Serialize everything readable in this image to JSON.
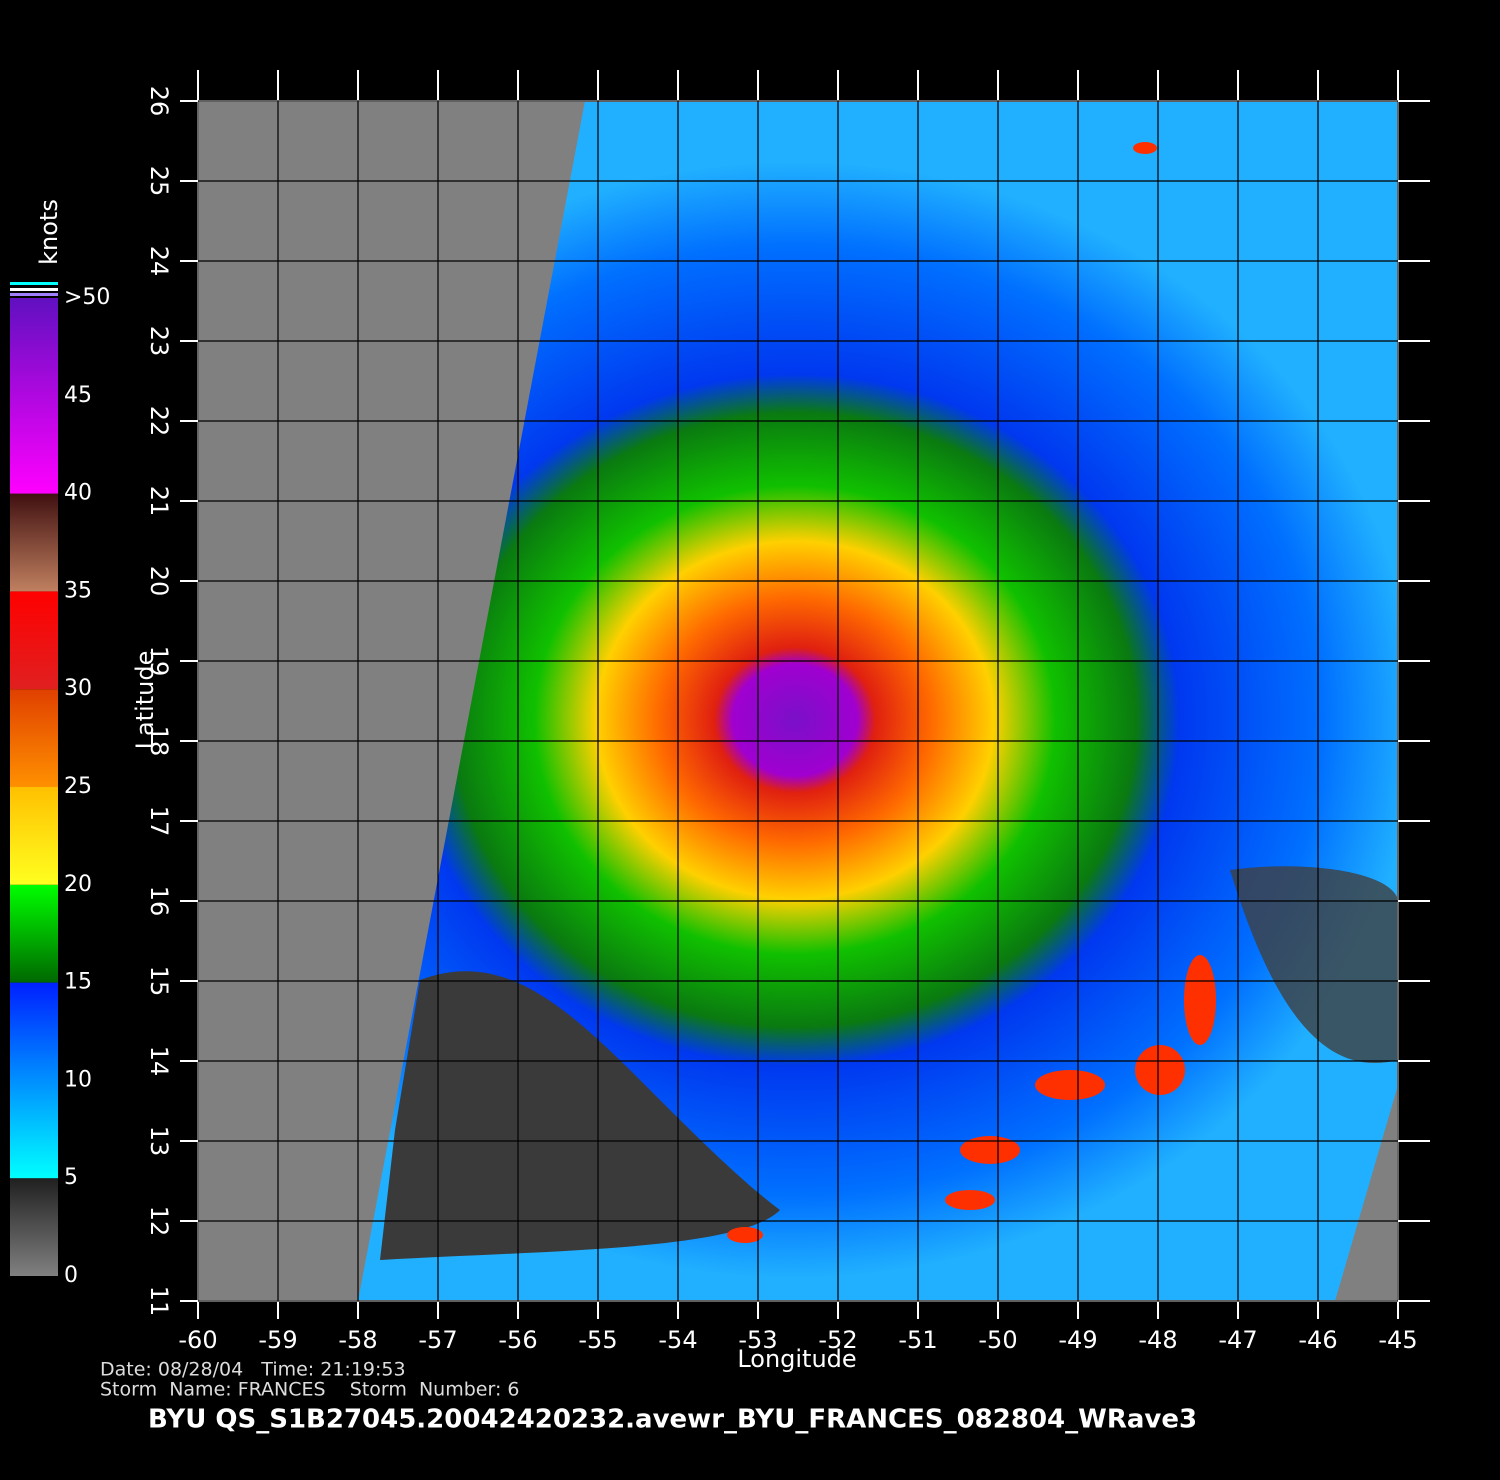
{
  "map": {
    "xlabel": "Longitude",
    "ylabel": "Latitude",
    "xlim": [
      -60,
      -45
    ],
    "ylim": [
      11,
      26
    ],
    "xticks": [
      -60,
      -59,
      -58,
      -57,
      -56,
      -55,
      -54,
      -53,
      -52,
      -51,
      -50,
      -49,
      -48,
      -47,
      -46,
      -45
    ],
    "yticks": [
      11,
      12,
      13,
      14,
      15,
      16,
      17,
      18,
      19,
      20,
      21,
      22,
      23,
      24,
      25,
      26
    ],
    "grid": true
  },
  "colorbar": {
    "title": "knots",
    "lim": [
      0,
      50
    ],
    "ticks": [
      0,
      5,
      10,
      15,
      20,
      25,
      30,
      35,
      40,
      45,
      {
        "value": 50,
        "label": ">50"
      }
    ],
    "segments": [
      {
        "from": 0,
        "to": 5,
        "colors": [
          "#808080",
          "#202020"
        ]
      },
      {
        "from": 5,
        "to": 15,
        "colors": [
          "#00ffff",
          "#0020ff"
        ]
      },
      {
        "from": 15,
        "to": 20,
        "colors": [
          "#006800",
          "#00ff00"
        ]
      },
      {
        "from": 20,
        "to": 25,
        "colors": [
          "#ffff20",
          "#ffc000"
        ]
      },
      {
        "from": 25,
        "to": 30,
        "colors": [
          "#ff9000",
          "#e04000"
        ]
      },
      {
        "from": 30,
        "to": 35,
        "colors": [
          "#e02020",
          "#ff0000"
        ]
      },
      {
        "from": 35,
        "to": 40,
        "colors": [
          "#c08060",
          "#401010"
        ]
      },
      {
        "from": 40,
        "to": 50,
        "colors": [
          "#ff00ff",
          "#6010c0"
        ]
      }
    ]
  },
  "footer": {
    "line1": "Date: 08/28/04   Time: 21:19:53",
    "line2": "Storm  Name: FRANCES    Storm  Number: 6",
    "title": "BYU  QS_S1B27045.20042420232.avewr_BYU_FRANCES_082804_WRave3"
  }
}
